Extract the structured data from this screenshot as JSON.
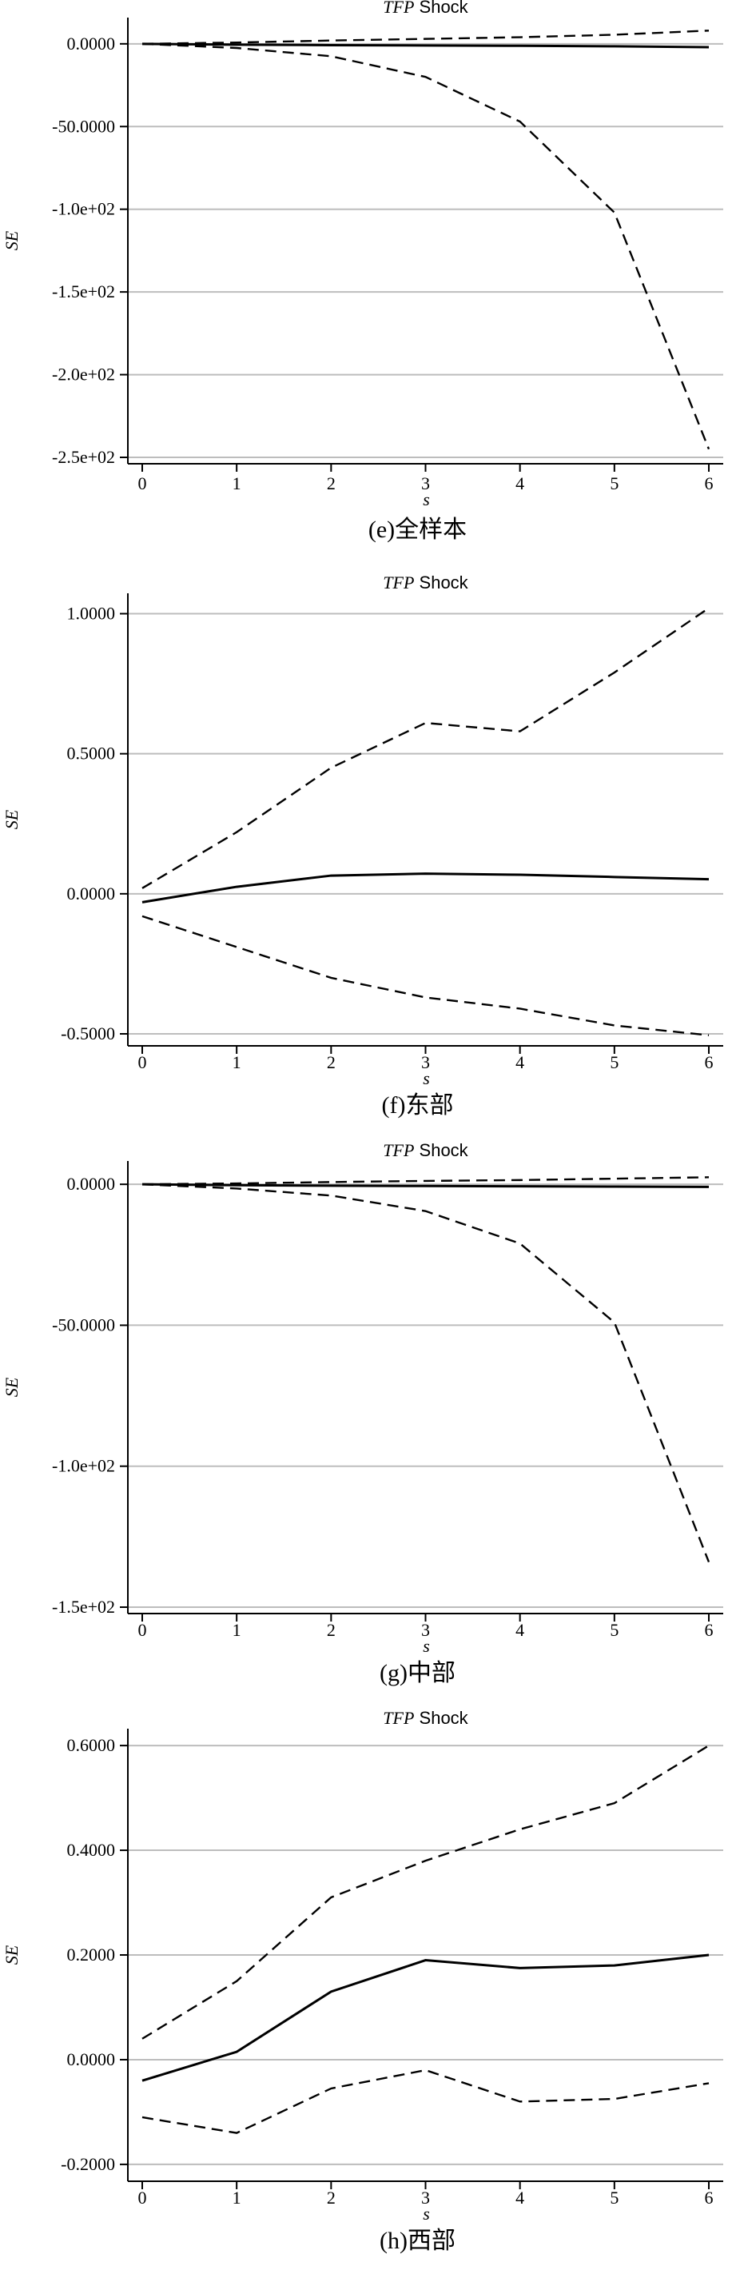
{
  "chart_data": [
    {
      "type": "line",
      "title_italic": "TFP",
      "title_rest": " Shock",
      "xlabel": "s",
      "ylabel": "SE",
      "caption": "(e)全样本",
      "x": [
        0,
        1,
        2,
        3,
        4,
        5,
        6
      ],
      "xticks": [
        "0",
        "1",
        "2",
        "3",
        "4",
        "5",
        "6"
      ],
      "ylim": [
        -250,
        12
      ],
      "yticks": [
        {
          "value": 0,
          "label": "0.0000"
        },
        {
          "value": -50,
          "label": "-50.0000"
        },
        {
          "value": -100,
          "label": "-1.0e+02"
        },
        {
          "value": -150,
          "label": "-1.5e+02"
        },
        {
          "value": -200,
          "label": "-2.0e+02"
        },
        {
          "value": -250,
          "label": "-2.5e+02"
        }
      ],
      "grid": true,
      "series": [
        {
          "style": "solid",
          "values": [
            0,
            -0.5,
            -0.8,
            -1.0,
            -1.2,
            -1.5,
            -2.0
          ]
        },
        {
          "style": "dashed",
          "values": [
            0,
            0.8,
            2.0,
            3.0,
            4.0,
            5.5,
            8.0
          ]
        },
        {
          "style": "dashed",
          "values": [
            0,
            -2.5,
            -7.5,
            -20,
            -47,
            -102,
            -245
          ]
        }
      ]
    },
    {
      "type": "line",
      "title_italic": "TFP",
      "title_rest": " Shock",
      "xlabel": "s",
      "ylabel": "SE",
      "caption": "(f)东部",
      "x": [
        0,
        1,
        2,
        3,
        4,
        5,
        6
      ],
      "xticks": [
        "0",
        "1",
        "2",
        "3",
        "4",
        "5",
        "6"
      ],
      "ylim": [
        -0.52,
        1.05
      ],
      "yticks": [
        {
          "value": 1.0,
          "label": "1.0000"
        },
        {
          "value": 0.5,
          "label": "0.5000"
        },
        {
          "value": 0.0,
          "label": "0.0000"
        },
        {
          "value": -0.5,
          "label": "-0.5000"
        }
      ],
      "grid": true,
      "series": [
        {
          "style": "solid",
          "values": [
            -0.03,
            0.025,
            0.065,
            0.072,
            0.068,
            0.06,
            0.052
          ]
        },
        {
          "style": "dashed",
          "values": [
            0.02,
            0.22,
            0.45,
            0.61,
            0.58,
            0.79,
            1.02
          ]
        },
        {
          "style": "dashed",
          "values": [
            -0.08,
            -0.19,
            -0.3,
            -0.37,
            -0.41,
            -0.47,
            -0.505
          ]
        }
      ]
    },
    {
      "type": "line",
      "title_italic": "TFP",
      "title_rest": " Shock",
      "xlabel": "s",
      "ylabel": "SE",
      "caption": "(g)中部",
      "x": [
        0,
        1,
        2,
        3,
        4,
        5,
        6
      ],
      "xticks": [
        "0",
        "1",
        "2",
        "3",
        "4",
        "5",
        "6"
      ],
      "ylim": [
        -150,
        6
      ],
      "yticks": [
        {
          "value": 0,
          "label": "0.0000"
        },
        {
          "value": -50,
          "label": "-50.0000"
        },
        {
          "value": -100,
          "label": "-1.0e+02"
        },
        {
          "value": -150,
          "label": "-1.5e+02"
        }
      ],
      "grid": true,
      "series": [
        {
          "style": "solid",
          "values": [
            0,
            -0.3,
            -0.5,
            -0.6,
            -0.7,
            -0.8,
            -0.9
          ]
        },
        {
          "style": "dashed",
          "values": [
            0,
            0.3,
            0.8,
            1.2,
            1.5,
            2.0,
            2.5
          ]
        },
        {
          "style": "dashed",
          "values": [
            0,
            -1.5,
            -4.0,
            -9.5,
            -21,
            -49,
            -134
          ]
        }
      ]
    },
    {
      "type": "line",
      "title_italic": "TFP",
      "title_rest": " Shock",
      "xlabel": "s",
      "ylabel": "SE",
      "caption": "(h)西部",
      "x": [
        0,
        1,
        2,
        3,
        4,
        5,
        6
      ],
      "xticks": [
        "0",
        "1",
        "2",
        "3",
        "4",
        "5",
        "6"
      ],
      "ylim": [
        -0.22,
        0.62
      ],
      "yticks": [
        {
          "value": 0.6,
          "label": "0.6000"
        },
        {
          "value": 0.4,
          "label": "0.4000"
        },
        {
          "value": 0.2,
          "label": "0.2000"
        },
        {
          "value": 0.0,
          "label": "0.0000"
        },
        {
          "value": -0.2,
          "label": "-0.2000"
        }
      ],
      "grid": true,
      "series": [
        {
          "style": "solid",
          "values": [
            -0.04,
            0.015,
            0.13,
            0.19,
            0.175,
            0.18,
            0.2
          ]
        },
        {
          "style": "dashed",
          "values": [
            0.04,
            0.15,
            0.31,
            0.38,
            0.44,
            0.49,
            0.6
          ]
        },
        {
          "style": "dashed",
          "values": [
            -0.11,
            -0.14,
            -0.055,
            -0.02,
            -0.08,
            -0.075,
            -0.045
          ]
        }
      ]
    }
  ]
}
